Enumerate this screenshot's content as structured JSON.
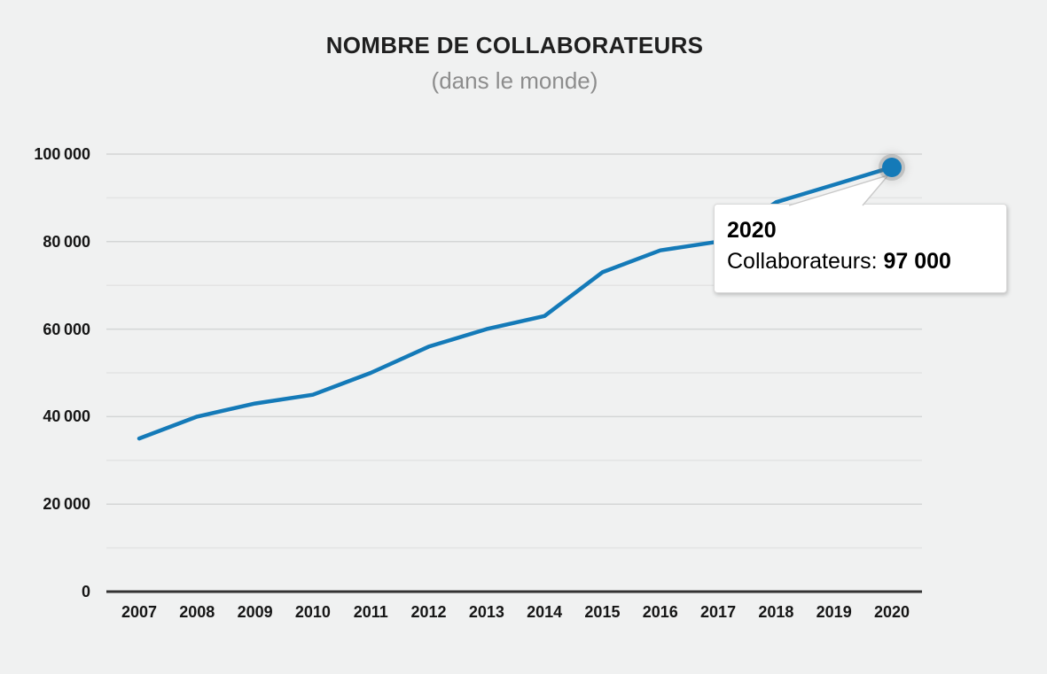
{
  "chart_data": {
    "type": "line",
    "title": "NOMBRE DE COLLABORATEURS",
    "subtitle": "(dans le monde)",
    "x": [
      2007,
      2008,
      2009,
      2010,
      2011,
      2012,
      2013,
      2014,
      2015,
      2016,
      2017,
      2018,
      2019,
      2020
    ],
    "series": [
      {
        "name": "Collaborateurs",
        "values": [
          35000,
          40000,
          43000,
          45000,
          50000,
          56000,
          60000,
          63000,
          73000,
          78000,
          80000,
          89000,
          93000,
          97000
        ],
        "color": "#147ab8"
      }
    ],
    "ylim": [
      0,
      100000
    ],
    "y_grid_step": 10000,
    "y_label_ticks": [
      {
        "value": 0,
        "label": "0"
      },
      {
        "value": 20000,
        "label": "20 000"
      },
      {
        "value": 40000,
        "label": "40 000"
      },
      {
        "value": 60000,
        "label": "60 000"
      },
      {
        "value": 80000,
        "label": "80 000"
      },
      {
        "value": 100000,
        "label": "100 000"
      }
    ],
    "grid": "horizontal",
    "legend_position": "none",
    "highlight_point": {
      "x": 2020,
      "y": 97000
    }
  },
  "tooltip": {
    "year": "2020",
    "series_label": "Collaborateurs: ",
    "value": "97 000"
  },
  "colors": {
    "line": "#147ab8",
    "marker": "#147ab8",
    "axis": "#333333",
    "grid_major": "#d4d6d6",
    "grid_minor": "#e3e4e4",
    "background": "#f0f1f1",
    "title_text": "#1f1f1f",
    "subtitle_text": "#8d8d8d",
    "tooltip_border": "#d9d9d9",
    "tooltip_background": "#ffffff"
  }
}
